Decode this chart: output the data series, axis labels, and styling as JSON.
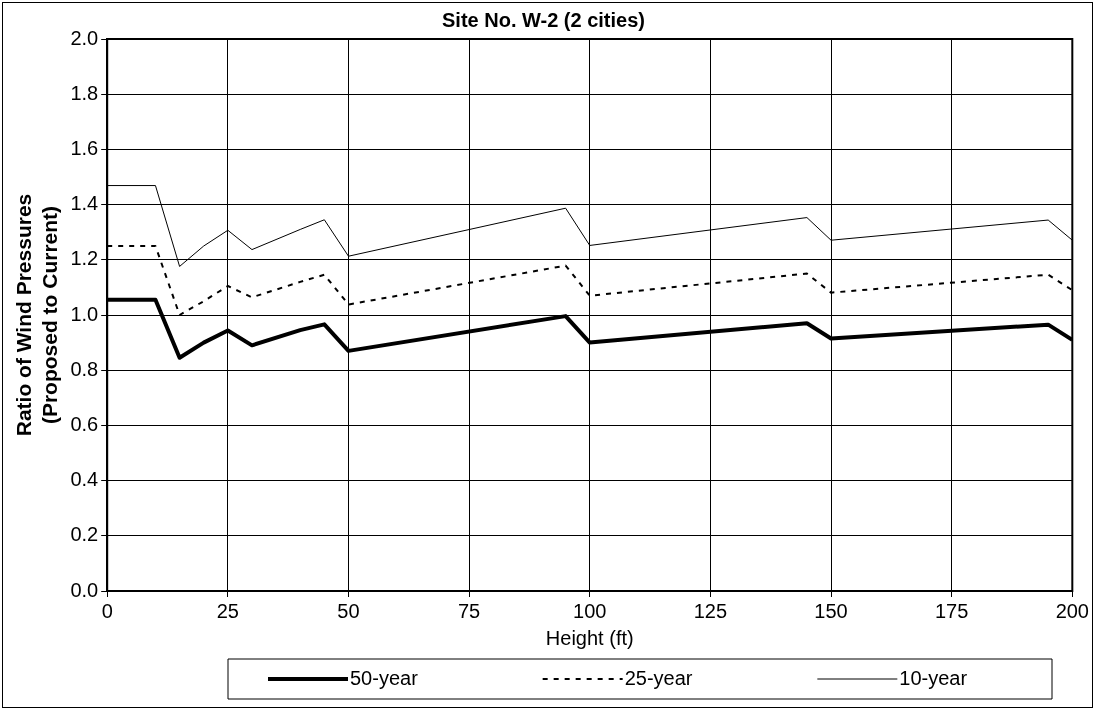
{
  "chart_data": {
    "type": "line",
    "title": "Site No. W-2 (2 cities)",
    "xlabel": "Height (ft)",
    "ylabel": "Ratio of Wind Pressures\n(Proposed to Current)",
    "x": [
      0,
      10,
      15,
      20,
      25,
      30,
      40,
      45,
      50,
      95,
      100,
      145,
      150,
      195,
      200
    ],
    "series": [
      {
        "name": "50-year",
        "color": "#000000",
        "line_style": "solid",
        "values": [
          1.055,
          1.055,
          0.845,
          0.9,
          0.944,
          0.89,
          0.945,
          0.966,
          0.87,
          0.996,
          0.9,
          0.97,
          0.915,
          0.965,
          0.91
        ]
      },
      {
        "name": "25-year",
        "color": "#000000",
        "line_style": "dashed",
        "values": [
          1.25,
          1.25,
          1.0,
          1.05,
          1.105,
          1.064,
          1.12,
          1.146,
          1.038,
          1.179,
          1.07,
          1.15,
          1.081,
          1.146,
          1.09
        ]
      },
      {
        "name": "10-year",
        "color": "#000000",
        "line_style": "solid",
        "values": [
          1.469,
          1.469,
          1.176,
          1.25,
          1.307,
          1.237,
          1.31,
          1.345,
          1.213,
          1.387,
          1.252,
          1.353,
          1.271,
          1.344,
          1.271
        ]
      }
    ],
    "xlim": [
      0,
      200
    ],
    "xticks": [
      0,
      25,
      50,
      75,
      100,
      125,
      150,
      175,
      200
    ],
    "ylim": [
      0,
      2
    ],
    "yticks": [
      {
        "value": 0,
        "label": "0.0"
      },
      {
        "value": 0.2,
        "label": "0.2"
      },
      {
        "value": 0.4,
        "label": "0.4"
      },
      {
        "value": 0.6,
        "label": "0.6"
      },
      {
        "value": 0.8,
        "label": "0.8"
      },
      {
        "value": 1,
        "label": "1.0"
      },
      {
        "value": 1.2,
        "label": "1.2"
      },
      {
        "value": 1.4,
        "label": "1.4"
      },
      {
        "value": 1.6,
        "label": "1.6"
      },
      {
        "value": 1.8,
        "label": "1.8"
      },
      {
        "value": 2,
        "label": "2.0"
      }
    ],
    "grid": true,
    "legend": "bottom",
    "marker": "none"
  }
}
